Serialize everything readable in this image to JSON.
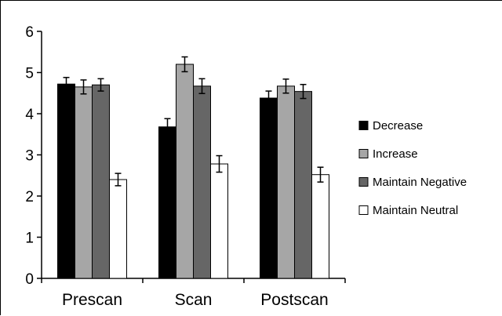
{
  "chart_data": {
    "type": "bar",
    "title": "",
    "xlabel": "",
    "ylabel": "",
    "ylim": [
      0,
      6
    ],
    "yticks": [
      0,
      1,
      2,
      3,
      4,
      5,
      6
    ],
    "grid": false,
    "legend_position": "right",
    "categories": [
      "Prescan",
      "Scan",
      "Postscan"
    ],
    "series": [
      {
        "name": "Decrease",
        "color": "#000000",
        "values": [
          4.72,
          3.68,
          4.38
        ],
        "errors": [
          0.16,
          0.2,
          0.17
        ]
      },
      {
        "name": "Increase",
        "color": "#a6a6a6",
        "values": [
          4.65,
          5.2,
          4.67
        ],
        "errors": [
          0.17,
          0.18,
          0.17
        ]
      },
      {
        "name": "Maintain Negative",
        "color": "#666666",
        "values": [
          4.7,
          4.67,
          4.54
        ],
        "errors": [
          0.15,
          0.18,
          0.17
        ]
      },
      {
        "name": "Maintain Neutral",
        "color": "#ffffff",
        "values": [
          2.4,
          2.78,
          2.52
        ],
        "errors": [
          0.15,
          0.2,
          0.18
        ]
      }
    ]
  }
}
